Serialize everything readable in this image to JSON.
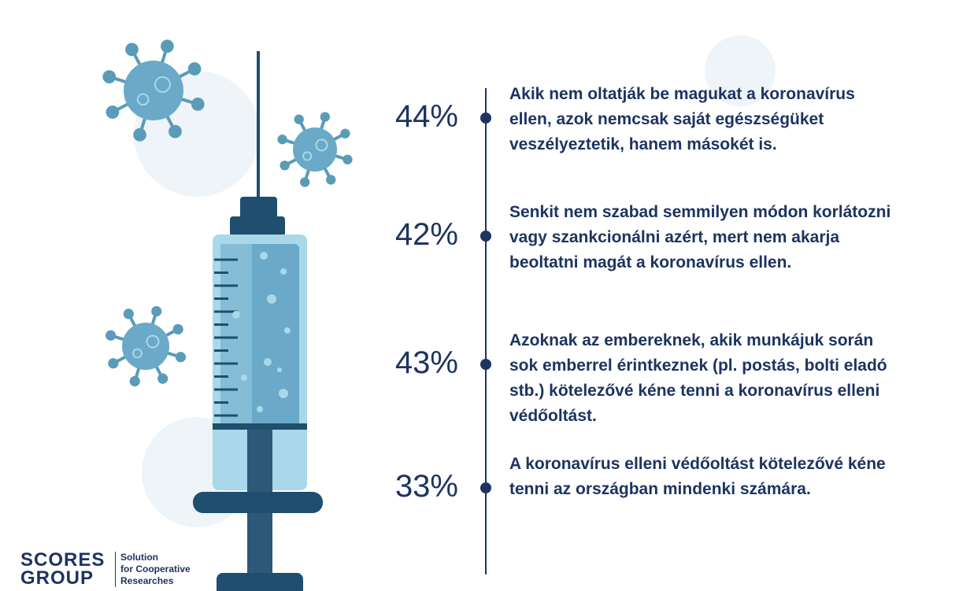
{
  "items": [
    {
      "percent": "44%",
      "lines": [
        "Akik nem oltatják be magukat a koronavírus",
        "ellen, azok nemcsak saját egészségüket",
        "veszélyeztetik, hanem másokét is."
      ]
    },
    {
      "percent": "42%",
      "lines": [
        "Senkit nem szabad semmilyen módon korlátozni",
        "vagy szankcionálni azért, mert nem akarja",
        "beoltatni magát a koronavírus ellen."
      ]
    },
    {
      "percent": "43%",
      "lines": [
        "Azoknak az embereknek, akik munkájuk során",
        "sok emberrel érintkeznek (pl. postás, bolti eladó",
        "stb.) kötelezővé kéne tenni a koronavírus elleni",
        "védőoltást."
      ]
    },
    {
      "percent": "33%",
      "lines": [
        "A koronavírus elleni védőoltást kötelezővé kéne",
        "tenni az országban mindenki számára."
      ]
    }
  ],
  "logo": {
    "line1": "SCORES",
    "line2": "GROUP",
    "tagline": [
      "Solution",
      "for Cooperative",
      "Researches"
    ]
  }
}
